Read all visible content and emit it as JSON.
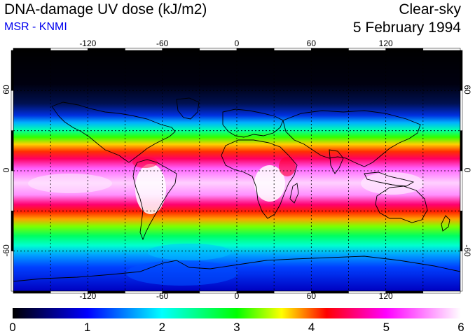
{
  "header": {
    "title": "DNA-damage UV dose (kJ/m2)",
    "subtitle": "MSR - KNMI",
    "mode": "Clear-sky",
    "date": "5 February 1994"
  },
  "map": {
    "lon_ticks": [
      "-120",
      "-60",
      "0",
      "60",
      "120"
    ],
    "lon_values": [
      -120,
      -60,
      0,
      60,
      120
    ],
    "lat_ticks_left": [
      "60",
      "0",
      "-60"
    ],
    "lat_ticks_right": [
      "60",
      "0",
      "-60"
    ],
    "lat_values": [
      60,
      0,
      -60
    ],
    "lon_range": [
      -180,
      180
    ],
    "lat_range": [
      -90,
      90
    ],
    "grid": true,
    "grid_interval_deg": 30
  },
  "colorbar": {
    "labels": [
      "0",
      "1",
      "2",
      "3",
      "4",
      "5",
      "6"
    ],
    "min": 0,
    "max": 6,
    "colors": [
      "#000000",
      "#0000ff",
      "#00ffff",
      "#00ff00",
      "#ffff00",
      "#ff0000",
      "#ff00ff",
      "#ffffff"
    ]
  }
}
